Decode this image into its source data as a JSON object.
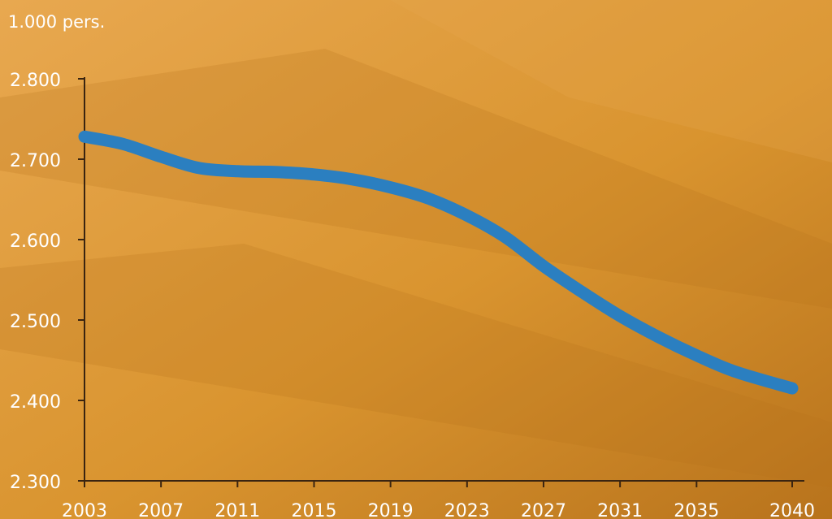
{
  "colors": {
    "background": "#d9942f",
    "background_dark": "#b8731c",
    "background_light": "#e8a850",
    "line": "#2b7fc0",
    "axis": "#3a2410",
    "text": "#ffffff"
  },
  "chart_data": {
    "type": "line",
    "unit_label": "1.000 pers.",
    "title": "",
    "xlabel": "",
    "ylabel": "",
    "xlim": [
      2003,
      2040
    ],
    "ylim": [
      2300,
      2800
    ],
    "y_ticks": [
      2800,
      2700,
      2600,
      2500,
      2400,
      2300
    ],
    "y_tick_labels": [
      "2.800",
      "2.700",
      "2.600",
      "2.500",
      "2.400",
      "2.300"
    ],
    "x_ticks": [
      2003,
      2007,
      2011,
      2015,
      2019,
      2023,
      2027,
      2031,
      2035,
      2040
    ],
    "x_tick_labels": [
      "2003",
      "2007",
      "2011",
      "2015",
      "2019",
      "2023",
      "2027",
      "2031",
      "2035",
      "2040"
    ],
    "grid": false,
    "series": [
      {
        "x": [
          2003,
          2005,
          2007,
          2009,
          2011,
          2013,
          2015,
          2017,
          2019,
          2021,
          2023,
          2025,
          2027,
          2029,
          2031,
          2033,
          2035,
          2037,
          2040
        ],
        "y": [
          2728,
          2719,
          2703,
          2689,
          2685,
          2684,
          2681,
          2675,
          2665,
          2651,
          2630,
          2603,
          2567,
          2535,
          2505,
          2479,
          2456,
          2436,
          2415
        ]
      }
    ]
  }
}
